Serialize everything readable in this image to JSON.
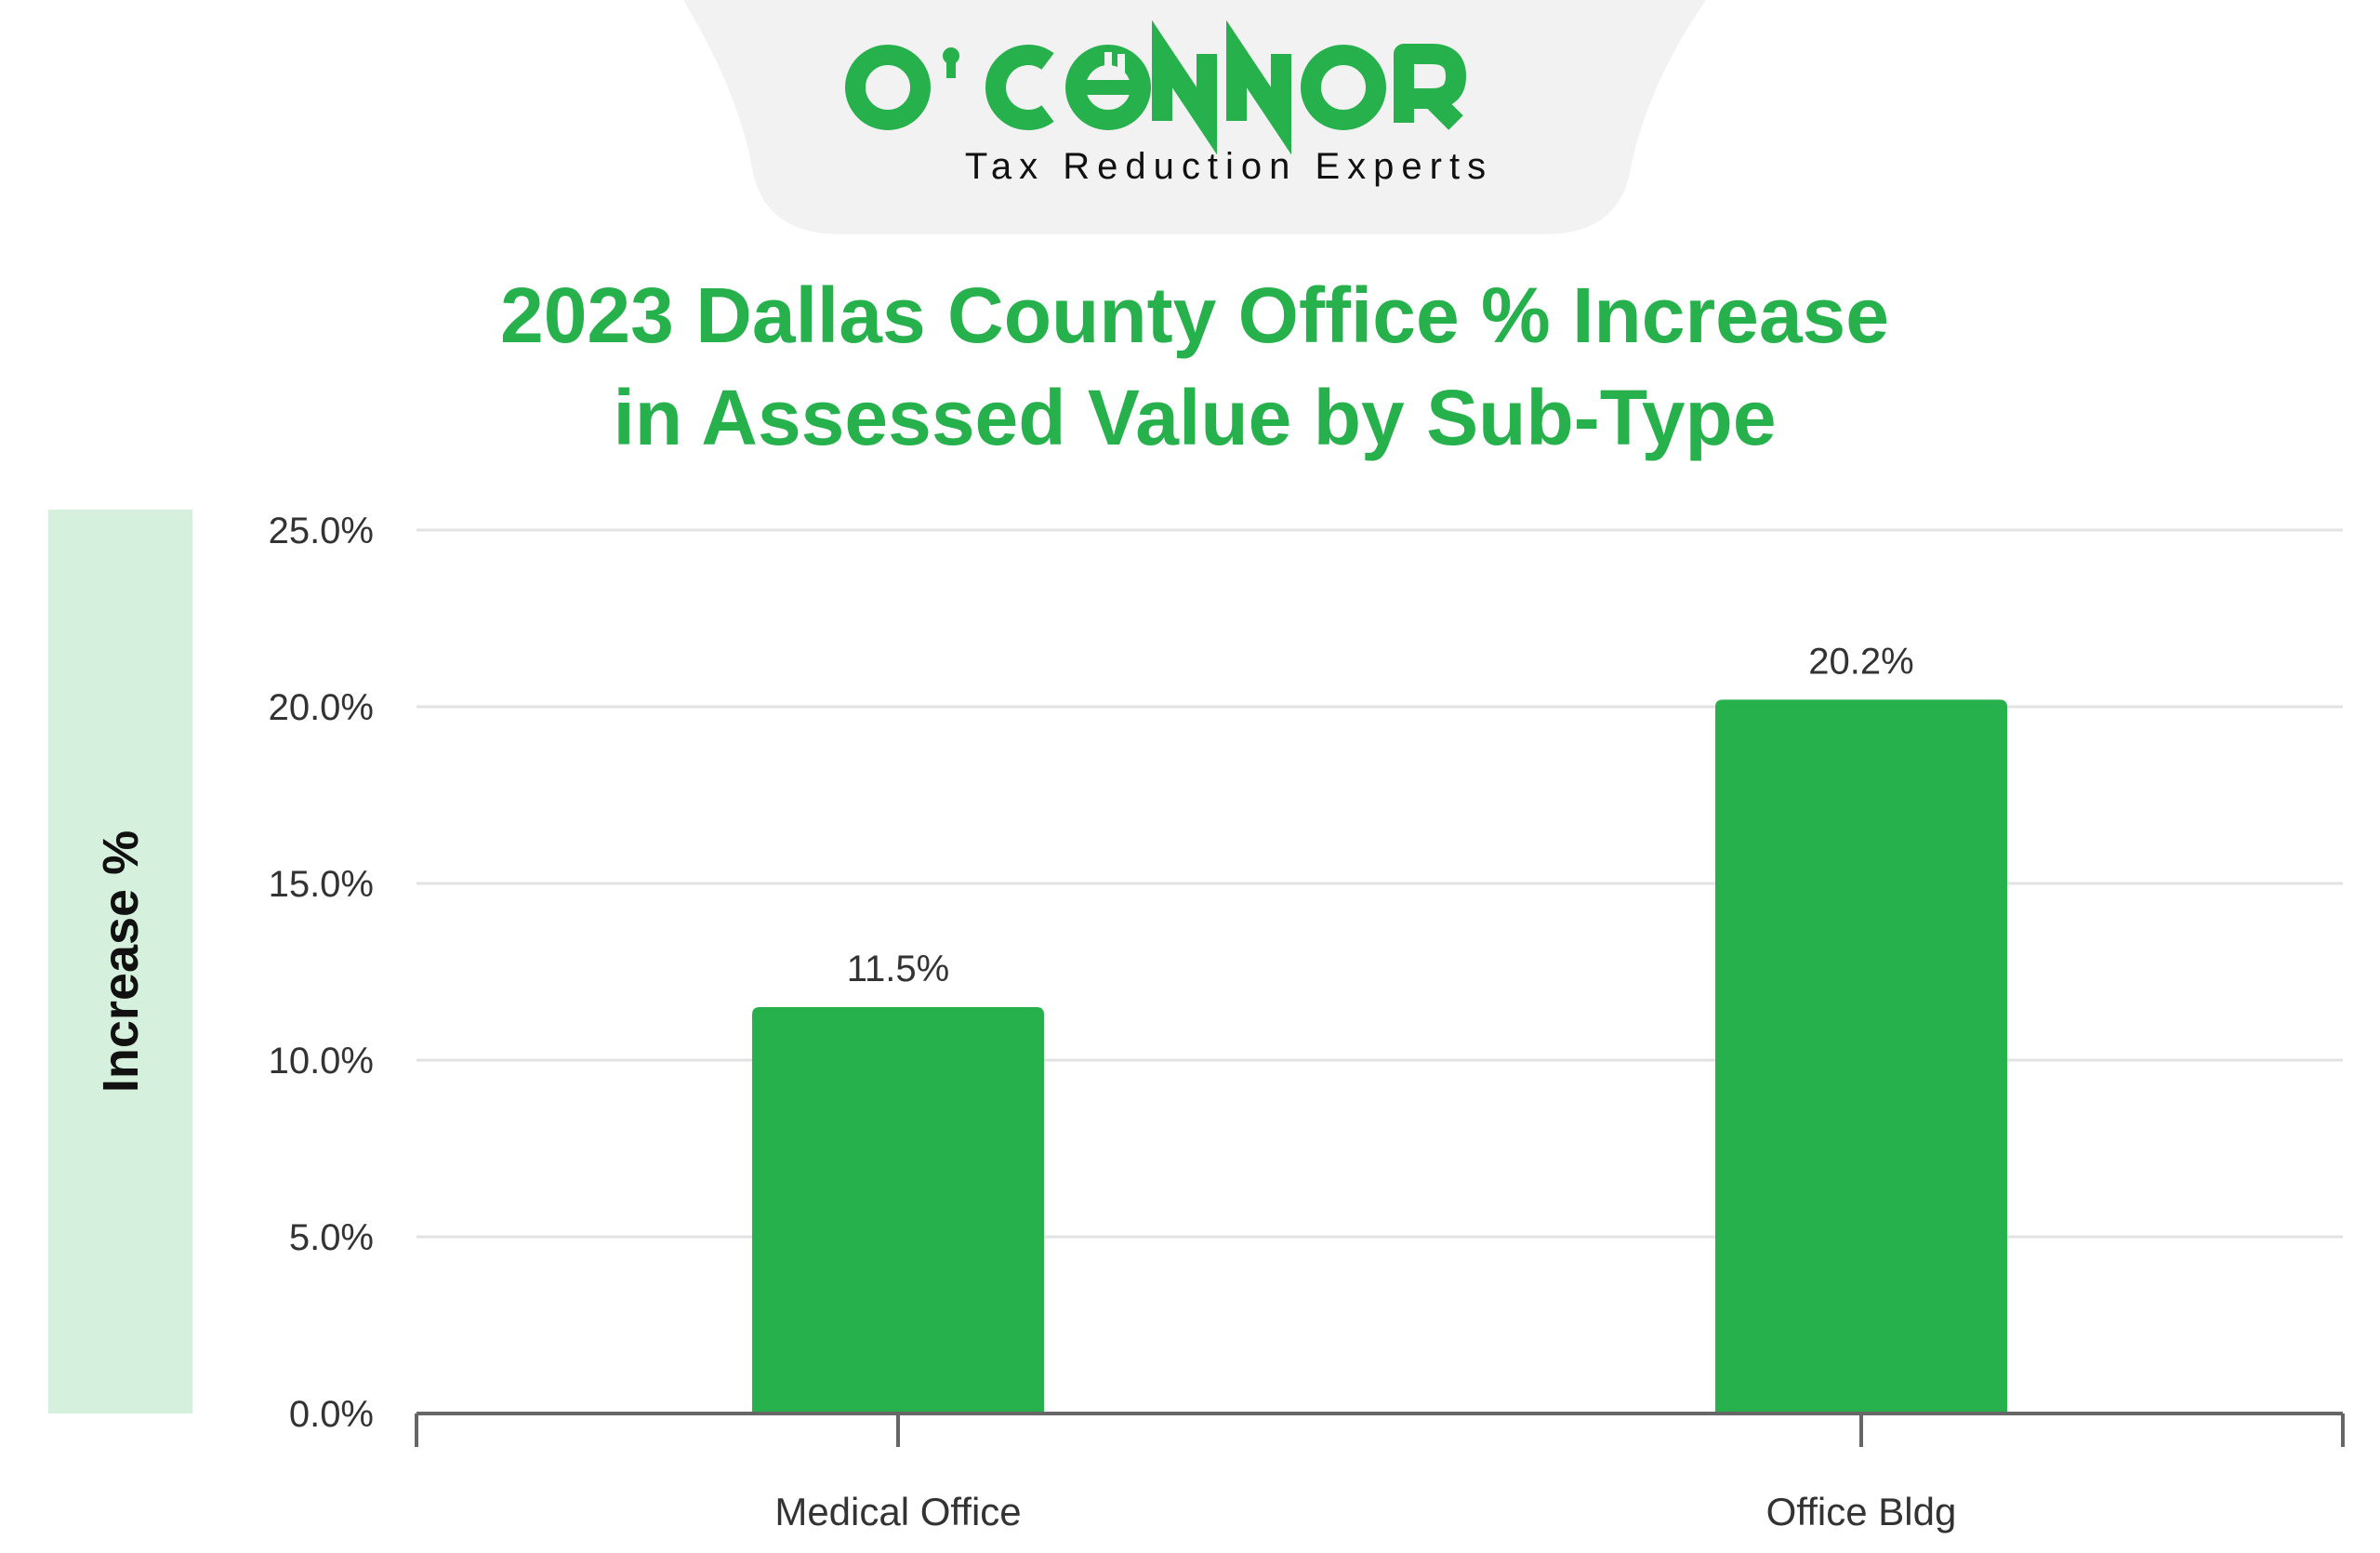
{
  "brand": {
    "logo_text": "O'CONNOR",
    "tagline": "Tax Reduction Experts",
    "brand_color": "#27b14c",
    "banner_color": "#f2f2f2"
  },
  "chart_data": {
    "type": "bar",
    "title": [
      "2023 Dallas County Office % Increase",
      "in Assessed Value by Sub-Type"
    ],
    "ylabel": "Increase %",
    "xlabel": "",
    "categories": [
      "Medical Office",
      "Office Bldg"
    ],
    "values": [
      11.5,
      20.2
    ],
    "data_labels": [
      "11.5%",
      "20.2%"
    ],
    "ylim": [
      0,
      25
    ],
    "yticks": [
      0,
      5,
      10,
      15,
      20,
      25
    ],
    "ytick_labels": [
      "0.0%",
      "5.0%",
      "10.0%",
      "15.0%",
      "20.0%",
      "25.0%"
    ],
    "grid": true,
    "bar_color": "#27b14c",
    "ylabel_band_color": "#d5f0dd"
  }
}
